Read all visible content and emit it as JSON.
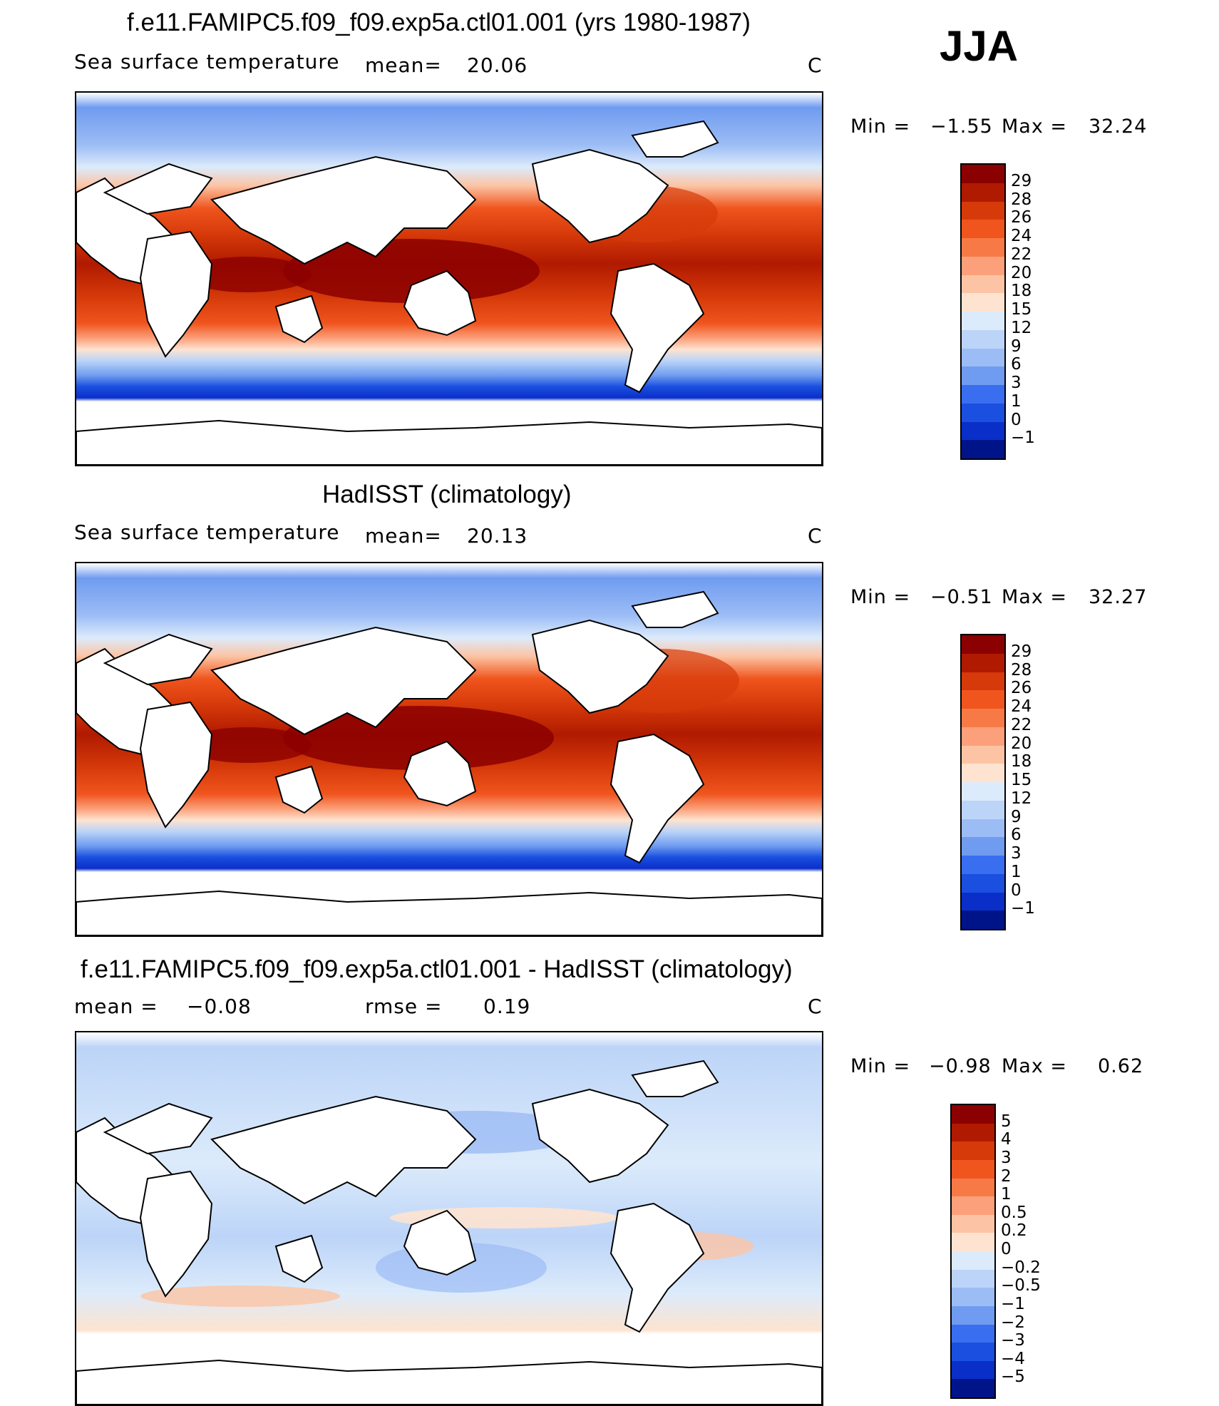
{
  "season": "JJA",
  "panels": [
    {
      "title": "f.e11.FAMIPC5.f09_f09.exp5a.ctl01.001 (yrs 1980-1987)",
      "variable": "Sea surface temperature",
      "stat_label": "mean=",
      "stat_value": "20.06",
      "units": "C",
      "min_label": "Min =",
      "min_value": "−1.55",
      "max_label": "Max =",
      "max_value": "32.24",
      "colorbar_labels": [
        "29",
        "28",
        "26",
        "24",
        "22",
        "20",
        "18",
        "15",
        "12",
        "9",
        "6",
        "3",
        "1",
        "0",
        "−1"
      ]
    },
    {
      "title": "HadISST (climatology)",
      "variable": "Sea surface temperature",
      "stat_label": "mean=",
      "stat_value": "20.13",
      "units": "C",
      "min_label": "Min =",
      "min_value": "−0.51",
      "max_label": "Max =",
      "max_value": "32.27",
      "colorbar_labels": [
        "29",
        "28",
        "26",
        "24",
        "22",
        "20",
        "18",
        "15",
        "12",
        "9",
        "6",
        "3",
        "1",
        "0",
        "−1"
      ]
    },
    {
      "title": "f.e11.FAMIPC5.f09_f09.exp5a.ctl01.001 - HadISST (climatology)",
      "mean_label": "mean =",
      "mean_value": "−0.08",
      "rmse_label": "rmse =",
      "rmse_value": "0.19",
      "units": "C",
      "min_label": "Min =",
      "min_value": "−0.98",
      "max_label": "Max =",
      "max_value": "0.62",
      "colorbar_labels": [
        "5",
        "4",
        "3",
        "2",
        "1",
        "0.5",
        "0.2",
        "0",
        "−0.2",
        "−0.5",
        "−1",
        "−2",
        "−3",
        "−4",
        "−5"
      ]
    }
  ],
  "colors": {
    "sst_scale": [
      "#8b0000",
      "#b01a00",
      "#d63a0a",
      "#f0551e",
      "#f77a46",
      "#fba07a",
      "#fcc4a4",
      "#fde3d0",
      "#dcebfb",
      "#bcd4f8",
      "#9cbcf5",
      "#6f9cf0",
      "#3a6ef0",
      "#1a4fe0",
      "#0a2fc8",
      "#00148a"
    ],
    "diff_scale": [
      "#8b0000",
      "#b01a00",
      "#d63a0a",
      "#f0551e",
      "#f77a46",
      "#fba07a",
      "#fcc4a4",
      "#fde3d0",
      "#dcebfb",
      "#bcd4f8",
      "#9cbcf5",
      "#6f9cf0",
      "#3a6ef0",
      "#1a4fe0",
      "#0a2fc8",
      "#00148a"
    ]
  }
}
